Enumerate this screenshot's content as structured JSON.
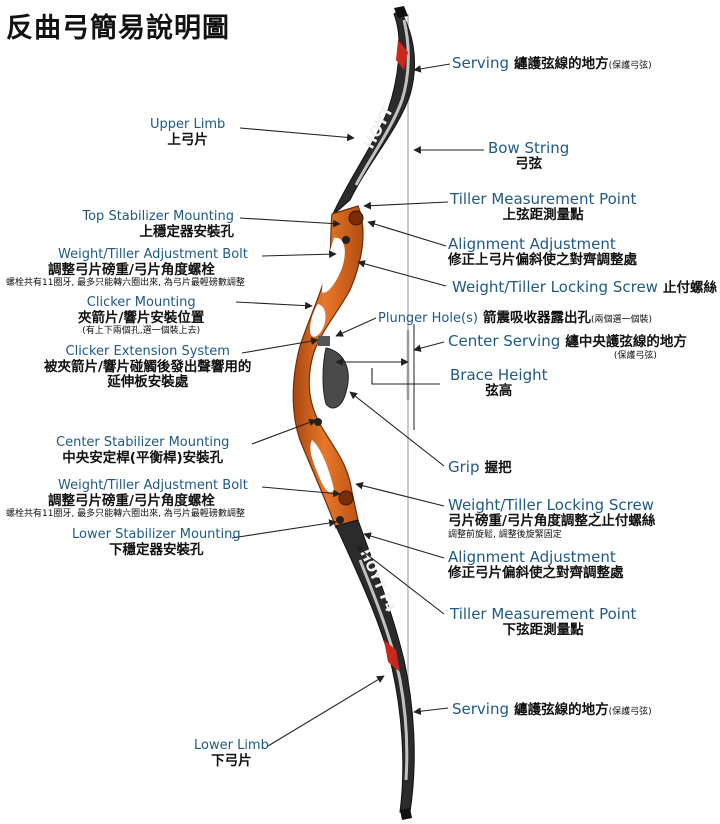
{
  "title": "反曲弓簡易說明圖",
  "labels": {
    "serving_top": {
      "en": "Serving",
      "zh": "纏護弦線的地方",
      "note": "(保護弓弦)"
    },
    "upper_limb": {
      "en": "Upper Limb",
      "zh": "上弓片"
    },
    "bow_string": {
      "en": "Bow String",
      "zh": "弓弦"
    },
    "tiller_top": {
      "en": "Tiller Measurement Point",
      "zh": "上弦距測量點"
    },
    "top_stab": {
      "en": "Top Stabilizer Mounting",
      "zh": "上穩定器安裝孔"
    },
    "align_top": {
      "en": "Alignment Adjustment",
      "zh": "修正上弓片偏斜使之對齊調整處"
    },
    "weight_bolt_top": {
      "en": "Weight/Tiller Adjustment Bolt",
      "zh": "調整弓片磅重/弓片角度螺栓",
      "note": "螺栓共有11圈牙, 最多只能轉六圈出來, 為弓片最輕磅數調整"
    },
    "lock_top": {
      "en": "Weight/Tiller Locking Screw",
      "zh": "止付螺絲"
    },
    "clicker": {
      "en": "Clicker Mounting",
      "zh": "夾箭片/響片安裝位置",
      "note": "(有上下兩個孔,選一個裝上去)"
    },
    "plunger": {
      "en": "Plunger Hole(s)",
      "zh": "箭震吸收器露出孔",
      "note": "(兩個選一個裝)"
    },
    "clicker_ext": {
      "en": "Clicker Extension System",
      "zh1": "被夾箭片/響片碰觸後發出聲響用的",
      "zh2": "延伸板安裝處"
    },
    "center_serving": {
      "en": "Center Serving",
      "zh": "纏中央護弦線的地方",
      "note": "(保護弓弦)"
    },
    "brace_height": {
      "en": "Brace Height",
      "zh": "弦高"
    },
    "center_stab": {
      "en": "Center Stabilizer Mounting",
      "zh": "中央安定桿(平衡桿)安裝孔"
    },
    "grip": {
      "en": "Grip",
      "zh": "握把"
    },
    "weight_bolt_bot": {
      "en": "Weight/Tiller Adjustment Bolt",
      "zh": "調整弓片磅重/弓片角度螺栓",
      "note": "螺栓共有11圈牙, 最多只能轉六圈出來, 為弓片最輕磅數調整"
    },
    "lock_bot": {
      "en": "Weight/Tiller Locking Screw",
      "zh": "弓片磅重/弓片角度調整之止付螺絲",
      "note": "調整前旋鬆, 調整後旋緊固定"
    },
    "lower_stab": {
      "en": "Lower Stabilizer Mounting",
      "zh": "下穩定器安裝孔"
    },
    "align_bot": {
      "en": "Alignment Adjustment",
      "zh": "修正弓片偏斜使之對齊調整處"
    },
    "tiller_bot": {
      "en": "Tiller Measurement Point",
      "zh": "下弦距測量點"
    },
    "serving_bot": {
      "en": "Serving",
      "zh": "纏護弦線的地方",
      "note": "(保護弓弦)"
    },
    "lower_limb": {
      "en": "Lower Limb",
      "zh": "下弓片"
    }
  },
  "limb_text": {
    "upper": "HOYT",
    "lower": "HOYT F4"
  },
  "colors": {
    "riser": "#d9671b",
    "riser_dark": "#8a3a0c",
    "limb": "#2b2b2b",
    "accent_red": "#c8281e",
    "label_blue": "#1e5a86"
  }
}
